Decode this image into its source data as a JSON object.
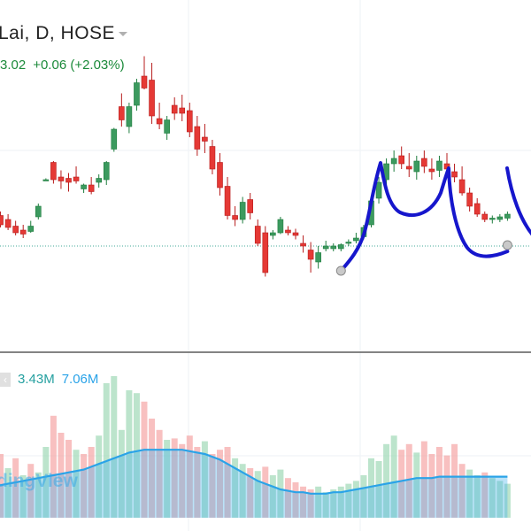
{
  "header": {
    "symbol_text": "Lai, D, HOSE",
    "quote_price": "3.02",
    "quote_change": "+0.06 (+2.03%)",
    "price_color": "#1b8a3a"
  },
  "volume_legend": {
    "icon": "collapse-icon",
    "volume": "3.43M",
    "volume_ma": "7.06M",
    "volume_color": "#25a0a0",
    "ma_color": "#2aa3e8"
  },
  "watermark": "dingView",
  "colors": {
    "up": "#3c9a5f",
    "up_wick": "#1e7d3e",
    "down": "#e53935",
    "down_wick": "#b71c1c",
    "vol_up": "rgba(144, 210, 170, 0.6)",
    "vol_down": "rgba(244, 150, 150, 0.6)",
    "vol_ma_fill": "rgba(60, 175, 235, 0.35)",
    "vol_ma_line": "#2aa3e8",
    "drawing": "#1616cc",
    "grid": "#eef2f5",
    "price_line": "#43a99a"
  },
  "chart_data": {
    "type": "candlestick",
    "price_scale": {
      "min": 0,
      "max": 100
    },
    "volume_scale": {
      "min": 0,
      "max": 100
    },
    "candles": [
      {
        "o": 25,
        "h": 28,
        "l": 18,
        "c": 22
      },
      {
        "o": 23,
        "h": 26,
        "l": 14,
        "c": 16
      },
      {
        "o": 20,
        "h": 24,
        "l": 12,
        "c": 14
      },
      {
        "o": 15,
        "h": 19,
        "l": 8,
        "c": 10
      },
      {
        "o": 12,
        "h": 16,
        "l": 6,
        "c": 9
      },
      {
        "o": 11,
        "h": 19,
        "l": 10,
        "c": 15
      },
      {
        "o": 22,
        "h": 32,
        "l": 20,
        "c": 30
      },
      {
        "o": 50,
        "h": 51,
        "l": 49,
        "c": 50
      },
      {
        "o": 63,
        "h": 64,
        "l": 47,
        "c": 50
      },
      {
        "o": 52,
        "h": 57,
        "l": 43,
        "c": 49
      },
      {
        "o": 51,
        "h": 55,
        "l": 41,
        "c": 48
      },
      {
        "o": 52,
        "h": 60,
        "l": 47,
        "c": 49
      },
      {
        "o": 43,
        "h": 47,
        "l": 40,
        "c": 46
      },
      {
        "o": 46,
        "h": 52,
        "l": 39,
        "c": 41
      },
      {
        "o": 48,
        "h": 54,
        "l": 44,
        "c": 51
      },
      {
        "o": 50,
        "h": 64,
        "l": 46,
        "c": 63
      },
      {
        "o": 73,
        "h": 89,
        "l": 71,
        "c": 88
      },
      {
        "o": 105,
        "h": 115,
        "l": 90,
        "c": 95
      },
      {
        "o": 90,
        "h": 108,
        "l": 85,
        "c": 105
      },
      {
        "o": 106,
        "h": 126,
        "l": 102,
        "c": 123
      },
      {
        "o": 128,
        "h": 143,
        "l": 118,
        "c": 119
      },
      {
        "o": 125,
        "h": 138,
        "l": 92,
        "c": 98
      },
      {
        "o": 96,
        "h": 108,
        "l": 88,
        "c": 92
      },
      {
        "o": 85,
        "h": 98,
        "l": 80,
        "c": 95
      },
      {
        "o": 106,
        "h": 112,
        "l": 95,
        "c": 100
      },
      {
        "o": 104,
        "h": 114,
        "l": 94,
        "c": 100
      },
      {
        "o": 102,
        "h": 108,
        "l": 82,
        "c": 86
      },
      {
        "o": 90,
        "h": 98,
        "l": 68,
        "c": 73
      },
      {
        "o": 82,
        "h": 92,
        "l": 70,
        "c": 79
      },
      {
        "o": 75,
        "h": 80,
        "l": 54,
        "c": 58
      },
      {
        "o": 63,
        "h": 70,
        "l": 38,
        "c": 44
      },
      {
        "o": 45,
        "h": 52,
        "l": 20,
        "c": 23
      },
      {
        "o": 23,
        "h": 30,
        "l": 15,
        "c": 20
      },
      {
        "o": 20,
        "h": 37,
        "l": 17,
        "c": 33
      },
      {
        "o": 35,
        "h": 40,
        "l": 20,
        "c": 25
      },
      {
        "o": 15,
        "h": 20,
        "l": 0,
        "c": 2
      },
      {
        "o": 10,
        "h": 15,
        "l": -23,
        "c": -20
      },
      {
        "o": 8,
        "h": 12,
        "l": 5,
        "c": 10
      },
      {
        "o": 10,
        "h": 22,
        "l": 9,
        "c": 20
      },
      {
        "o": 12,
        "h": 15,
        "l": 8,
        "c": 10
      },
      {
        "o": 10,
        "h": 13,
        "l": 5,
        "c": 8
      },
      {
        "o": 2,
        "h": 8,
        "l": -5,
        "c": 0
      },
      {
        "o": -3,
        "h": 3,
        "l": -20,
        "c": -10
      },
      {
        "o": -12,
        "h": 0,
        "l": -17,
        "c": -5
      },
      {
        "o": -2,
        "h": 4,
        "l": -4,
        "c": 0
      },
      {
        "o": -2,
        "h": 2,
        "l": -4,
        "c": 0
      },
      {
        "o": -2,
        "h": 2,
        "l": -4,
        "c": 1
      },
      {
        "o": 2,
        "h": 5,
        "l": 0,
        "c": 3
      },
      {
        "o": 4,
        "h": 10,
        "l": 2,
        "c": 6
      },
      {
        "o": 7,
        "h": 16,
        "l": 5,
        "c": 14
      },
      {
        "o": 16,
        "h": 36,
        "l": 14,
        "c": 34
      },
      {
        "o": 36,
        "h": 52,
        "l": 32,
        "c": 48
      },
      {
        "o": 50,
        "h": 66,
        "l": 46,
        "c": 62
      },
      {
        "o": 62,
        "h": 72,
        "l": 56,
        "c": 66
      },
      {
        "o": 68,
        "h": 75,
        "l": 58,
        "c": 62
      },
      {
        "o": 60,
        "h": 70,
        "l": 52,
        "c": 58
      },
      {
        "o": 56,
        "h": 68,
        "l": 50,
        "c": 64
      },
      {
        "o": 66,
        "h": 72,
        "l": 55,
        "c": 60
      },
      {
        "o": 58,
        "h": 66,
        "l": 50,
        "c": 56
      },
      {
        "o": 57,
        "h": 68,
        "l": 52,
        "c": 64
      },
      {
        "o": 62,
        "h": 70,
        "l": 54,
        "c": 58
      },
      {
        "o": 56,
        "h": 62,
        "l": 48,
        "c": 52
      },
      {
        "o": 50,
        "h": 60,
        "l": 38,
        "c": 40
      },
      {
        "o": 40,
        "h": 44,
        "l": 26,
        "c": 30
      },
      {
        "o": 32,
        "h": 36,
        "l": 22,
        "c": 24
      },
      {
        "o": 24,
        "h": 26,
        "l": 18,
        "c": 20
      },
      {
        "o": 20,
        "h": 23,
        "l": 17,
        "c": 21
      },
      {
        "o": 20,
        "h": 24,
        "l": 18,
        "c": 22
      },
      {
        "o": 21,
        "h": 26,
        "l": 19,
        "c": 24
      }
    ],
    "volume": [
      {
        "v": 40,
        "up": true
      },
      {
        "v": 45,
        "up": false
      },
      {
        "v": 35,
        "up": true
      },
      {
        "v": 42,
        "up": false
      },
      {
        "v": 30,
        "up": true
      },
      {
        "v": 38,
        "up": false
      },
      {
        "v": 32,
        "up": true
      },
      {
        "v": 50,
        "up": true
      },
      {
        "v": 72,
        "up": false
      },
      {
        "v": 60,
        "up": false
      },
      {
        "v": 55,
        "up": false
      },
      {
        "v": 48,
        "up": true
      },
      {
        "v": 45,
        "up": false
      },
      {
        "v": 50,
        "up": false
      },
      {
        "v": 58,
        "up": true
      },
      {
        "v": 95,
        "up": true
      },
      {
        "v": 100,
        "up": true
      },
      {
        "v": 62,
        "up": true
      },
      {
        "v": 90,
        "up": true
      },
      {
        "v": 88,
        "up": true
      },
      {
        "v": 82,
        "up": false
      },
      {
        "v": 70,
        "up": false
      },
      {
        "v": 62,
        "up": false
      },
      {
        "v": 55,
        "up": true
      },
      {
        "v": 56,
        "up": false
      },
      {
        "v": 52,
        "up": false
      },
      {
        "v": 58,
        "up": false
      },
      {
        "v": 50,
        "up": false
      },
      {
        "v": 54,
        "up": true
      },
      {
        "v": 45,
        "up": false
      },
      {
        "v": 48,
        "up": false
      },
      {
        "v": 50,
        "up": false
      },
      {
        "v": 42,
        "up": true
      },
      {
        "v": 38,
        "up": true
      },
      {
        "v": 35,
        "up": false
      },
      {
        "v": 33,
        "up": true
      },
      {
        "v": 36,
        "up": false
      },
      {
        "v": 30,
        "up": true
      },
      {
        "v": 34,
        "up": true
      },
      {
        "v": 28,
        "up": false
      },
      {
        "v": 25,
        "up": false
      },
      {
        "v": 22,
        "up": false
      },
      {
        "v": 20,
        "up": false
      },
      {
        "v": 22,
        "up": true
      },
      {
        "v": 18,
        "up": true
      },
      {
        "v": 20,
        "up": true
      },
      {
        "v": 22,
        "up": true
      },
      {
        "v": 24,
        "up": true
      },
      {
        "v": 26,
        "up": true
      },
      {
        "v": 30,
        "up": true
      },
      {
        "v": 42,
        "up": true
      },
      {
        "v": 40,
        "up": true
      },
      {
        "v": 52,
        "up": true
      },
      {
        "v": 58,
        "up": true
      },
      {
        "v": 48,
        "up": false
      },
      {
        "v": 52,
        "up": false
      },
      {
        "v": 46,
        "up": true
      },
      {
        "v": 54,
        "up": false
      },
      {
        "v": 45,
        "up": false
      },
      {
        "v": 50,
        "up": false
      },
      {
        "v": 44,
        "up": false
      },
      {
        "v": 52,
        "up": false
      },
      {
        "v": 38,
        "up": false
      },
      {
        "v": 34,
        "up": true
      },
      {
        "v": 30,
        "up": true
      },
      {
        "v": 32,
        "up": false
      },
      {
        "v": 28,
        "up": true
      },
      {
        "v": 26,
        "up": true
      },
      {
        "v": 24,
        "up": true
      }
    ],
    "volume_ma": [
      22,
      23,
      24,
      25,
      26,
      27,
      28,
      29,
      30,
      31,
      32,
      33,
      34,
      36,
      38,
      40,
      42,
      44,
      46,
      47,
      48,
      48,
      48,
      48,
      48,
      48,
      47,
      46,
      45,
      43,
      41,
      38,
      35,
      32,
      29,
      26,
      24,
      22,
      20,
      19,
      18,
      18,
      17,
      17,
      17,
      18,
      18,
      19,
      20,
      21,
      22,
      23,
      24,
      25,
      26,
      27,
      28,
      28,
      28,
      29,
      29,
      29,
      29,
      29,
      29,
      29,
      29,
      29,
      29
    ],
    "last_price_line": 0,
    "drawing": {
      "type": "freehand",
      "anchor_start_candle": 46,
      "anchor_end_candle": 68
    }
  }
}
